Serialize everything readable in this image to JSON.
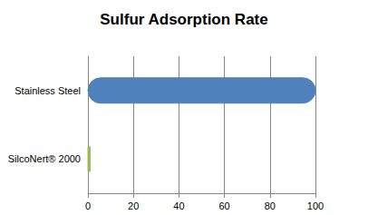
{
  "chart_data": {
    "type": "bar",
    "title": "Sulfur Adsorption Rate",
    "categories": [
      "Stainless Steel",
      "SilcoNert® 2000"
    ],
    "values": [
      100,
      1
    ],
    "colors": [
      "#4f81bd",
      "#9bbb59"
    ],
    "orientation": "horizontal",
    "xlim": [
      0,
      100
    ],
    "xticks": [
      0,
      20,
      40,
      60,
      80,
      100
    ],
    "grid": true
  }
}
